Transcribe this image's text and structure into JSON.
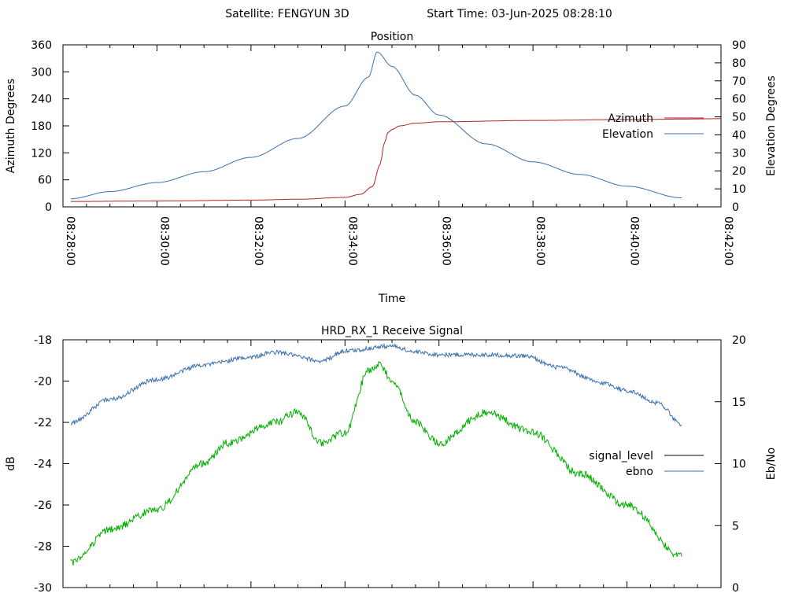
{
  "header": {
    "satellite_label": "Satellite: FENGYUN 3D",
    "start_time_label": "Start Time: 03-Jun-2025 08:28:10"
  },
  "colors": {
    "azimuth": "#b22222",
    "elevation": "#3a6fb0",
    "signal_level": "#00b000",
    "ebno": "#3a6fb0",
    "legend_signal_level_swatch": "#000000"
  },
  "chart_data": [
    {
      "type": "line",
      "title": "Position",
      "xlabel": "Time",
      "ylabel": "Azimuth Degrees",
      "y2label": "Elevation Degrees",
      "xlim": [
        "08:28:00",
        "08:42:00"
      ],
      "ylim": [
        0,
        360
      ],
      "y2lim": [
        0,
        90
      ],
      "x_ticks": [
        "08:28:00",
        "08:30:00",
        "08:32:00",
        "08:34:00",
        "08:36:00",
        "08:38:00",
        "08:40:00",
        "08:42:00"
      ],
      "y_ticks": [
        "0",
        "60",
        "120",
        "180",
        "240",
        "300",
        "360"
      ],
      "y2_ticks": [
        "0",
        "10",
        "20",
        "30",
        "40",
        "50",
        "60",
        "70",
        "80",
        "90"
      ],
      "legend_position": "right",
      "grid": false,
      "series": [
        {
          "name": "Azimuth",
          "axis": "y",
          "x": [
            "08:28:10",
            "08:30:00",
            "08:32:00",
            "08:33:00",
            "08:34:00",
            "08:34:20",
            "08:34:35",
            "08:34:45",
            "08:34:50",
            "08:34:55",
            "08:35:00",
            "08:35:10",
            "08:35:30",
            "08:36:00",
            "08:38:00",
            "08:40:00",
            "08:41:10",
            "08:42:00"
          ],
          "values": [
            12,
            13,
            15,
            17,
            21,
            28,
            45,
            95,
            140,
            165,
            172,
            180,
            186,
            189,
            192,
            194,
            195,
            196
          ]
        },
        {
          "name": "Elevation",
          "axis": "y2",
          "x": [
            "08:28:10",
            "08:29:00",
            "08:30:00",
            "08:31:00",
            "08:32:00",
            "08:33:00",
            "08:34:00",
            "08:34:30",
            "08:34:41",
            "08:35:00",
            "08:35:30",
            "08:36:00",
            "08:37:00",
            "08:38:00",
            "08:39:00",
            "08:40:00",
            "08:41:10"
          ],
          "values": [
            4.5,
            8.5,
            13.5,
            19.5,
            27.5,
            38,
            56,
            72,
            86,
            78,
            62,
            51,
            35,
            25,
            18,
            11.5,
            5
          ]
        }
      ]
    },
    {
      "type": "line",
      "title": "HRD_RX_1 Receive Signal",
      "ylabel": "dB",
      "y2label": "Eb/No",
      "xlim": [
        "08:28:00",
        "08:42:00"
      ],
      "ylim": [
        -30,
        -18
      ],
      "y2lim": [
        0,
        20
      ],
      "y_ticks": [
        "-18",
        "-20",
        "-22",
        "-24",
        "-26",
        "-28",
        "-30"
      ],
      "y2_ticks": [
        "20",
        "15",
        "10",
        "5",
        "0"
      ],
      "legend_position": "right",
      "grid": false,
      "series": [
        {
          "name": "signal_level",
          "axis": "y",
          "x": [],
          "values": []
        },
        {
          "name": "ebno",
          "axis": "y2",
          "x": [
            "08:28:10",
            "08:29:00",
            "08:30:00",
            "08:31:00",
            "08:32:00",
            "08:32:30",
            "08:33:30",
            "08:34:00",
            "08:35:00",
            "08:35:30",
            "08:36:00",
            "08:37:00",
            "08:37:50",
            "08:38:30",
            "08:39:30",
            "08:40:00",
            "08:40:40",
            "08:41:10"
          ],
          "values": [
            13.3,
            15.2,
            16.8,
            18.0,
            18.6,
            19.0,
            18.3,
            19.1,
            19.5,
            19.0,
            18.8,
            18.8,
            18.7,
            17.8,
            16.5,
            15.9,
            14.9,
            13.1
          ]
        },
        {
          "name": "",
          "axis": "y",
          "x": [
            "08:28:10",
            "08:29:00",
            "08:30:00",
            "08:31:00",
            "08:31:30",
            "08:32:30",
            "08:33:00",
            "08:33:30",
            "08:34:00",
            "08:34:30",
            "08:34:45",
            "08:35:00",
            "08:35:30",
            "08:36:00",
            "08:37:00",
            "08:38:00",
            "08:39:00",
            "08:40:00",
            "08:41:10"
          ],
          "values": [
            -28.8,
            -27.2,
            -26.2,
            -24.0,
            -23.0,
            -22.0,
            -21.5,
            -23.0,
            -22.5,
            -19.5,
            -19.2,
            -20.0,
            -22.0,
            -23.0,
            -21.5,
            -22.5,
            -24.5,
            -26.0,
            -28.5
          ]
        }
      ]
    }
  ]
}
